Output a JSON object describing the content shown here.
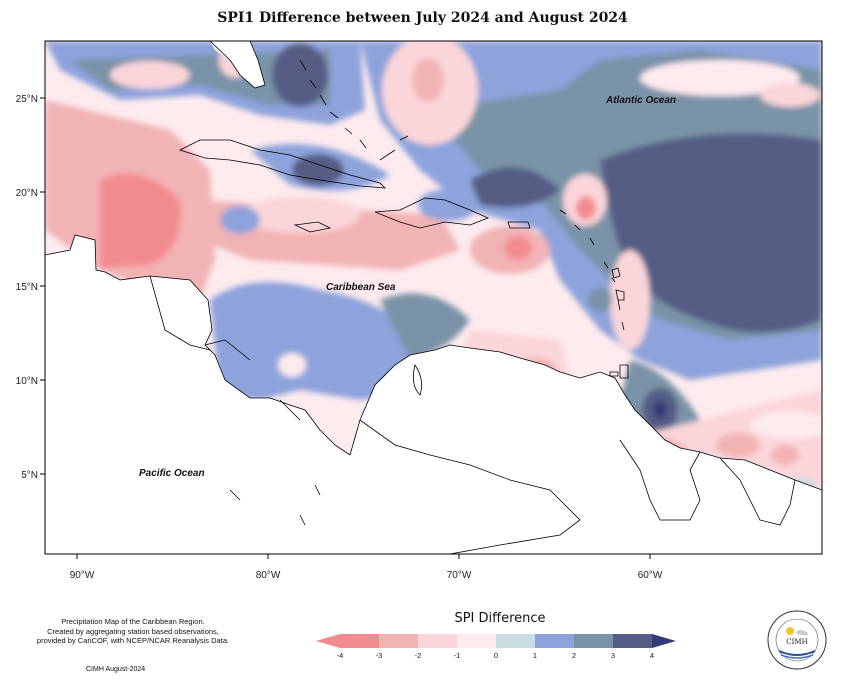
{
  "title": "SPI1 Difference between July 2024 and August 2024",
  "labels": {
    "atlantic": "Atlantic Ocean",
    "caribbean": "Caribbean Sea",
    "pacific": "Pacific Ocean"
  },
  "axes": {
    "x_ticks": [
      "90°W",
      "80°W",
      "70°W",
      "60°W"
    ],
    "y_ticks": [
      "25°N",
      "20°N",
      "15°N",
      "10°N",
      "5°N"
    ]
  },
  "caption": {
    "line1": "Precipitation Map of the Caribbean Region.",
    "line2": "Created by aggregating station based observations,",
    "line3": "provided by CariCOF, with NCEP/NCAR Reanalysis Data.",
    "credit": "CIMH August-2024"
  },
  "legend": {
    "title": "SPI Difference",
    "ticks": [
      "-4",
      "-3",
      "-2",
      "-1",
      "0",
      "1",
      "2",
      "3",
      "4"
    ],
    "colors": [
      "#f28b90",
      "#f2b3b5",
      "#fad5d9",
      "#fdebee",
      "#c9dde3",
      "#8ea3dc",
      "#7a93a8",
      "#545d85"
    ],
    "arrow_left_color": "#f28b90",
    "arrow_right_color": "#343a78"
  },
  "logo": {
    "text": "CIMH",
    "ring_text": "Caribbean Institute for Meteorology and Hydrology"
  }
}
